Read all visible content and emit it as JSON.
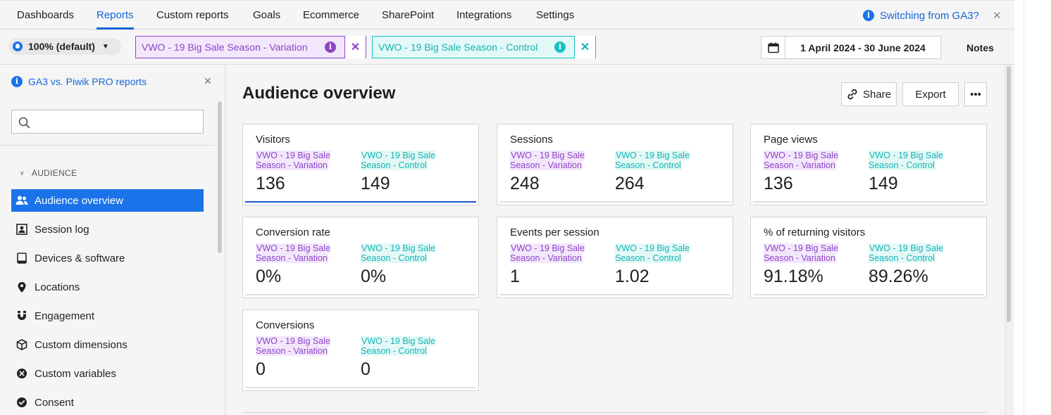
{
  "topnav": {
    "tabs": [
      "Dashboards",
      "Reports",
      "Custom reports",
      "Goals",
      "Ecommerce",
      "SharePoint",
      "Integrations",
      "Settings"
    ],
    "active_tab": "Reports",
    "ga3_link": "Switching from GA3?"
  },
  "filterbar": {
    "sampling": "100% (default)",
    "segment_variation": "VWO - 19 Big Sale Season - Variation",
    "segment_control": "VWO - 19 Big Sale Season - Control",
    "date_range": "1 April 2024 - 30 June 2024",
    "notes": "Notes"
  },
  "sidebar": {
    "banner": "GA3 vs. Piwik PRO reports",
    "search_placeholder": "",
    "section": "AUDIENCE",
    "items": [
      {
        "label": "Audience overview",
        "icon": "users-icon"
      },
      {
        "label": "Session log",
        "icon": "person-card-icon"
      },
      {
        "label": "Devices & software",
        "icon": "tablet-icon"
      },
      {
        "label": "Locations",
        "icon": "map-pin-icon"
      },
      {
        "label": "Engagement",
        "icon": "magnet-icon"
      },
      {
        "label": "Custom dimensions",
        "icon": "cube-icon"
      },
      {
        "label": "Custom variables",
        "icon": "x-circle-icon"
      },
      {
        "label": "Consent",
        "icon": "check-circle-icon"
      }
    ]
  },
  "main": {
    "title": "Audience overview",
    "share": "Share",
    "export": "Export",
    "more": "•••"
  },
  "labels": {
    "variation": "VWO - 19 Big Sale Season - Variation",
    "control": "VWO - 19 Big Sale Season - Control"
  },
  "cards": [
    {
      "title": "Visitors",
      "variation": "136",
      "control": "149"
    },
    {
      "title": "Sessions",
      "variation": "248",
      "control": "264"
    },
    {
      "title": "Page views",
      "variation": "136",
      "control": "149"
    },
    {
      "title": "Conversion rate",
      "variation": "0%",
      "control": "0%"
    },
    {
      "title": "Events per session",
      "variation": "1",
      "control": "1.02"
    },
    {
      "title": "% of returning visitors",
      "variation": "91.18%",
      "control": "89.26%"
    },
    {
      "title": "Conversions",
      "variation": "0",
      "control": "0"
    }
  ],
  "colors": {
    "accent": "#1a73e8",
    "variation": "#8e44c9",
    "control": "#16c2c2"
  }
}
